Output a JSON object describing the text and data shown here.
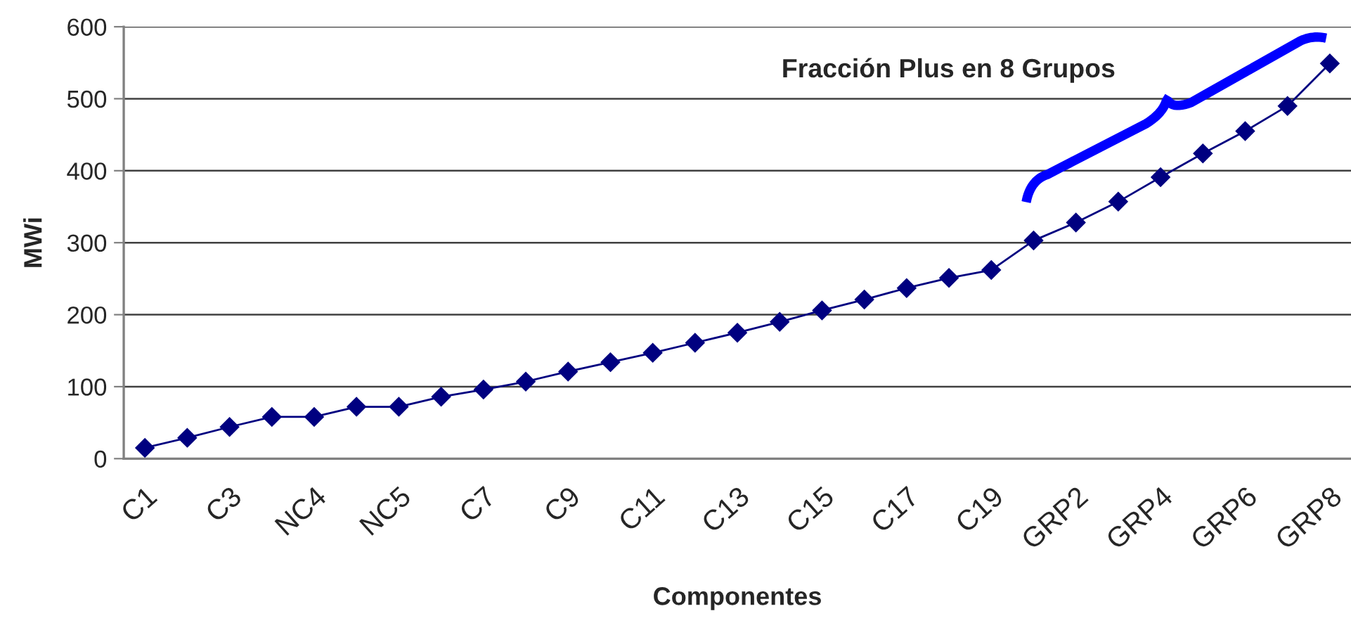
{
  "chart_data": {
    "type": "line",
    "xlabel": "Componentes",
    "ylabel": "MWi",
    "annotations": [
      "Fracción Plus en 8 Grupos"
    ],
    "categories": [
      "C1",
      null,
      "C3",
      null,
      "NC4",
      null,
      "NC5",
      null,
      "C7",
      null,
      "C9",
      null,
      "C11",
      null,
      "C13",
      null,
      "C15",
      null,
      "C17",
      null,
      "C19",
      null,
      "GRP2",
      null,
      "GRP4",
      null,
      "GRP6",
      null,
      "GRP8"
    ],
    "series": [
      {
        "color": "#000080",
        "values": [
          15,
          29,
          44,
          58,
          58,
          72,
          72,
          86,
          96,
          107,
          121,
          134,
          147,
          161,
          175,
          190,
          206,
          221,
          237,
          251,
          262,
          303,
          328,
          357,
          391,
          424,
          455,
          490,
          549
        ]
      }
    ],
    "ylim": [
      0,
      600
    ],
    "yticks": [
      0,
      100,
      200,
      300,
      400,
      500,
      600
    ],
    "grid": "y",
    "marker": "diamond",
    "line_style": "solid"
  }
}
